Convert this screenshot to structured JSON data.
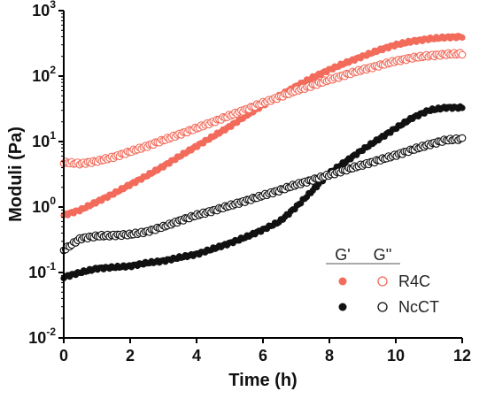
{
  "chart_data": {
    "type": "scatter",
    "xlabel": "Time (h)",
    "ylabel": "Moduli (Pa)",
    "xlim": [
      0,
      12
    ],
    "ylim": [
      0.01,
      1000
    ],
    "yscale": "log",
    "x_ticks": [
      0,
      2,
      4,
      6,
      8,
      10,
      12
    ],
    "x_tick_labels": [
      "0",
      "2",
      "4",
      "6",
      "8",
      "10",
      "12"
    ],
    "y_ticks": [
      0.01,
      0.1,
      1,
      10,
      100,
      1000
    ],
    "y_tick_labels": [
      {
        "base": "10",
        "exp": "-2"
      },
      {
        "base": "10",
        "exp": "-1"
      },
      {
        "base": "10",
        "exp": "0"
      },
      {
        "base": "10",
        "exp": "1"
      },
      {
        "base": "10",
        "exp": "2"
      },
      {
        "base": "10",
        "exp": "3"
      }
    ],
    "grid": false,
    "legend": {
      "position": "bottom-right",
      "headers": [
        "G'",
        "G''"
      ],
      "rows": [
        "R4C",
        "NcCT"
      ]
    },
    "colors": {
      "R4C": "#f26b5b",
      "NcCT": "#111111"
    },
    "series": [
      {
        "group": "R4C",
        "modulus": "G'",
        "marker": "filled",
        "x": [
          0,
          0.5,
          1,
          1.5,
          2,
          2.5,
          3,
          3.5,
          4,
          4.5,
          5,
          5.5,
          6,
          6.5,
          7,
          7.5,
          8,
          8.5,
          9,
          9.5,
          10,
          10.5,
          11,
          11.5,
          12
        ],
        "y": [
          0.75,
          0.9,
          1.2,
          1.6,
          2.2,
          3.0,
          4.2,
          6.0,
          8.5,
          12,
          17,
          25,
          36,
          50,
          70,
          95,
          125,
          160,
          200,
          250,
          300,
          340,
          370,
          390,
          400
        ]
      },
      {
        "group": "R4C",
        "modulus": "G''",
        "marker": "open",
        "x": [
          0,
          0.5,
          1,
          1.5,
          2,
          2.5,
          3,
          3.5,
          4,
          4.5,
          5,
          5.5,
          6,
          6.5,
          7,
          7.5,
          8,
          8.5,
          9,
          9.5,
          10,
          10.5,
          11,
          11.5,
          12
        ],
        "y": [
          4.8,
          4.6,
          5.0,
          5.8,
          7.0,
          8.5,
          10.5,
          13,
          16,
          20,
          25,
          31,
          39,
          48,
          60,
          72,
          88,
          105,
          125,
          145,
          170,
          190,
          205,
          215,
          220
        ]
      },
      {
        "group": "NcCT",
        "modulus": "G'",
        "marker": "filled",
        "x": [
          0,
          0.5,
          1,
          1.5,
          2,
          2.5,
          3,
          3.5,
          4,
          4.5,
          5,
          5.5,
          6,
          6.5,
          7,
          7.5,
          8,
          8.5,
          9,
          9.5,
          10,
          10.5,
          11,
          11.5,
          12
        ],
        "y": [
          0.085,
          0.1,
          0.115,
          0.12,
          0.125,
          0.14,
          0.15,
          0.17,
          0.19,
          0.23,
          0.28,
          0.35,
          0.45,
          0.6,
          1.0,
          1.8,
          3.3,
          5.0,
          7.5,
          11,
          16,
          23,
          30,
          33,
          33
        ]
      },
      {
        "group": "NcCT",
        "modulus": "G''",
        "marker": "open",
        "x": [
          0,
          0.5,
          1,
          1.5,
          2,
          2.5,
          3,
          3.5,
          4,
          4.5,
          5,
          5.5,
          6,
          6.5,
          7,
          7.5,
          8,
          8.5,
          9,
          9.5,
          10,
          10.5,
          11,
          11.5,
          12
        ],
        "y": [
          0.22,
          0.33,
          0.36,
          0.37,
          0.38,
          0.42,
          0.5,
          0.62,
          0.75,
          0.88,
          1.05,
          1.25,
          1.5,
          1.8,
          2.2,
          2.6,
          3.1,
          3.7,
          4.4,
          5.2,
          6.2,
          7.5,
          9.0,
          10.5,
          11
        ]
      }
    ]
  }
}
